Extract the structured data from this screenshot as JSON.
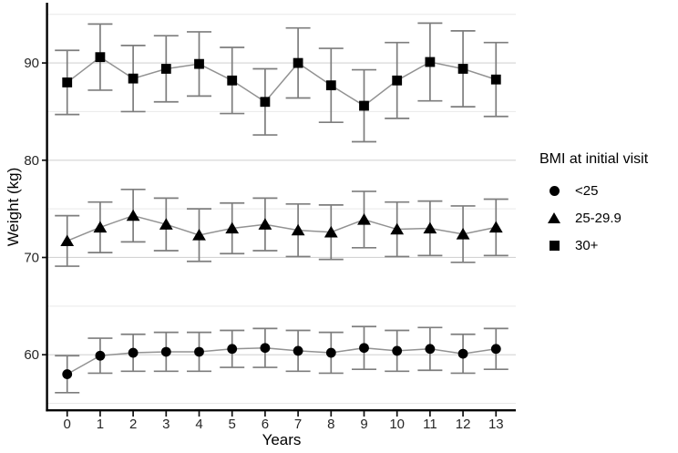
{
  "colors": {
    "background": "#ffffff",
    "axis_line": "#000000",
    "grid_major": "#d4d4d4",
    "grid_minor": "#e9e9e9",
    "error_bar": "#7d7d7d",
    "series_line": "#929292",
    "marker": "#000000",
    "tick_text": "#262626"
  },
  "chart_data": {
    "type": "line",
    "title": "",
    "xlabel": "Years",
    "ylabel": "Weight (kg)",
    "legend_title": "BMI at initial visit",
    "legend_position": "right",
    "grid": true,
    "x": [
      0,
      1,
      2,
      3,
      4,
      5,
      6,
      7,
      8,
      9,
      10,
      11,
      12,
      13
    ],
    "xlim": [
      -0.6,
      13.6
    ],
    "ylim": [
      54.3,
      96.1
    ],
    "yticks": [
      60,
      70,
      80,
      90
    ],
    "yticks_minor": [
      55,
      65,
      75,
      85,
      95
    ],
    "series": [
      {
        "name": "<25",
        "marker": "circle",
        "values": [
          58.0,
          59.9,
          60.2,
          60.3,
          60.3,
          60.6,
          60.7,
          60.4,
          60.2,
          60.7,
          60.4,
          60.6,
          60.1,
          60.6
        ],
        "errors": [
          1.9,
          1.8,
          1.9,
          2.0,
          2.0,
          1.9,
          2.0,
          2.1,
          2.1,
          2.2,
          2.1,
          2.2,
          2.0,
          2.1
        ]
      },
      {
        "name": "25-29.9",
        "marker": "triangle",
        "values": [
          71.7,
          73.1,
          74.3,
          73.4,
          72.3,
          73.0,
          73.4,
          72.8,
          72.6,
          73.9,
          72.9,
          73.0,
          72.4,
          73.1
        ],
        "errors": [
          2.6,
          2.6,
          2.7,
          2.7,
          2.7,
          2.6,
          2.7,
          2.7,
          2.8,
          2.9,
          2.8,
          2.8,
          2.9,
          2.9
        ]
      },
      {
        "name": "30+",
        "marker": "square",
        "values": [
          88.0,
          90.6,
          88.4,
          89.4,
          89.9,
          88.2,
          86.0,
          90.0,
          87.7,
          85.6,
          88.2,
          90.1,
          89.4,
          88.3
        ],
        "errors": [
          3.3,
          3.4,
          3.4,
          3.4,
          3.3,
          3.4,
          3.4,
          3.6,
          3.8,
          3.7,
          3.9,
          4.0,
          3.9,
          3.8
        ]
      }
    ]
  }
}
